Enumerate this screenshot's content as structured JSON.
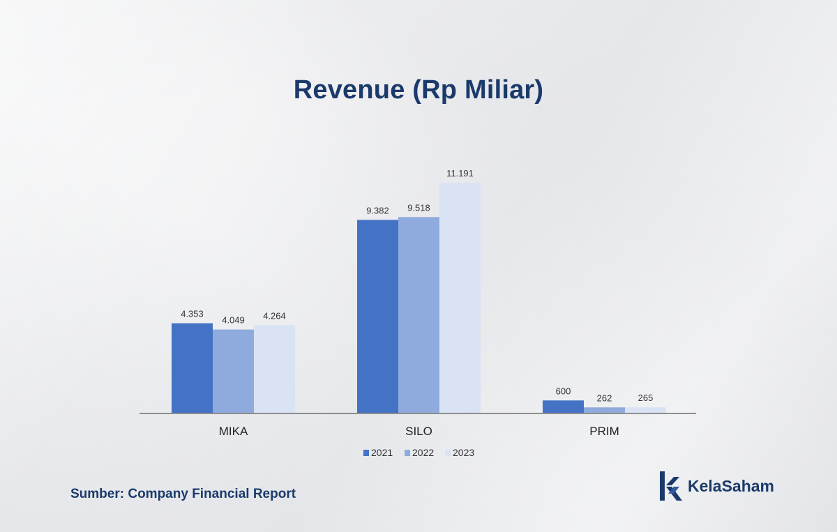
{
  "title": "Revenue (Rp Miliar)",
  "source": "Sumber: Company Financial Report",
  "brand": {
    "name": "KelaSaham",
    "icon": "kelasaham-logo-icon"
  },
  "colors": {
    "text": "#1b3a6b",
    "axis": "#555555",
    "label": "#333333"
  },
  "chart_data": {
    "type": "bar",
    "title": "Revenue (Rp Miliar)",
    "categories": [
      "MIKA",
      "SILO",
      "PRIM"
    ],
    "series": [
      {
        "name": "2021",
        "values": [
          4353,
          9382,
          600
        ],
        "labels": [
          "4.353",
          "9.382",
          "600"
        ],
        "color": "#4472c4"
      },
      {
        "name": "2022",
        "values": [
          4049,
          9518,
          262
        ],
        "labels": [
          "4.049",
          "9.518",
          "262"
        ],
        "color": "#8faadc"
      },
      {
        "name": "2023",
        "values": [
          4264,
          11191,
          265
        ],
        "labels": [
          "4.264",
          "11.191",
          "265"
        ],
        "color": "#dae3f3"
      }
    ],
    "ylim": [
      0,
      11191
    ],
    "grid": false,
    "legend": "bottom",
    "xlabel": "",
    "ylabel": ""
  }
}
